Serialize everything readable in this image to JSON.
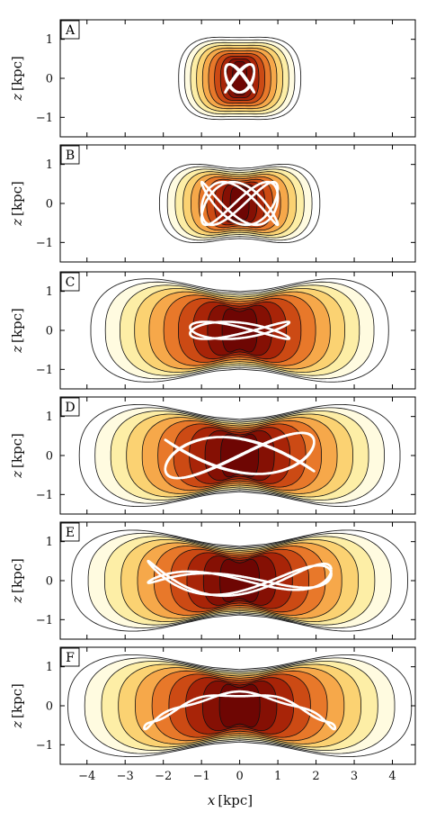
{
  "chart_data": {
    "type": "contour",
    "xlabel_var": "x",
    "xlabel_unit": "[kpc]",
    "ylabel_var": "z",
    "ylabel_unit": "[kpc]",
    "xlim": [
      -4.7,
      4.6
    ],
    "ylim": [
      -1.5,
      1.5
    ],
    "x_ticks": [
      "−4",
      "−3",
      "−2",
      "−1",
      "0",
      "1",
      "2",
      "3",
      "4"
    ],
    "y_ticks": [
      "1",
      "0",
      "−1"
    ],
    "colormap": [
      "#ffffff",
      "#fffbe0",
      "#fdeea6",
      "#fbd272",
      "#f6a84a",
      "#e8782a",
      "#cc4a14",
      "#a82408",
      "#851004",
      "#6e0603"
    ],
    "orbit_color": "#ffffff",
    "panels": [
      {
        "label": "A",
        "extent_x": 1.6,
        "extent_z": 1.1,
        "waist": 0.05,
        "orbit": {
          "ax": 0.38,
          "az": 0.36,
          "fx": 3,
          "fz": 4,
          "phase": 0.6,
          "tilt": 0.0,
          "warp": 0.0
        }
      },
      {
        "label": "B",
        "extent_x": 2.1,
        "extent_z": 1.15,
        "waist": 0.22,
        "orbit": {
          "ax": 1.0,
          "az": 0.55,
          "fx": 3,
          "fz": 5,
          "phase": 0.3,
          "tilt": 0.0,
          "warp": 0.0
        }
      },
      {
        "label": "C",
        "extent_x": 3.9,
        "extent_z": 1.6,
        "waist": 0.38,
        "orbit": {
          "ax": 1.3,
          "az": 0.22,
          "fx": 2,
          "fz": 3,
          "phase": 1.2,
          "tilt": 0.0,
          "warp": 0.0
        }
      },
      {
        "label": "D",
        "extent_x": 4.2,
        "extent_z": 1.6,
        "waist": 0.42,
        "orbit": {
          "ax": 1.95,
          "az": 0.5,
          "fx": 3,
          "fz": 5,
          "phase": 0.5,
          "tilt": 0.05,
          "warp": 0.0
        }
      },
      {
        "label": "E",
        "extent_x": 4.4,
        "extent_z": 1.6,
        "waist": 0.45,
        "orbit": {
          "ax": 2.4,
          "az": 0.28,
          "fx": 2,
          "fz": 5,
          "phase": 0.2,
          "tilt": 0.0,
          "warp": 0.06
        }
      },
      {
        "label": "F",
        "extent_x": 4.5,
        "extent_z": 1.6,
        "waist": 0.42,
        "orbit": {
          "ax": 2.5,
          "az": 0.06,
          "fx": 1,
          "fz": 7,
          "phase": 0.0,
          "tilt": 0.0,
          "warp": -0.14
        }
      }
    ]
  }
}
